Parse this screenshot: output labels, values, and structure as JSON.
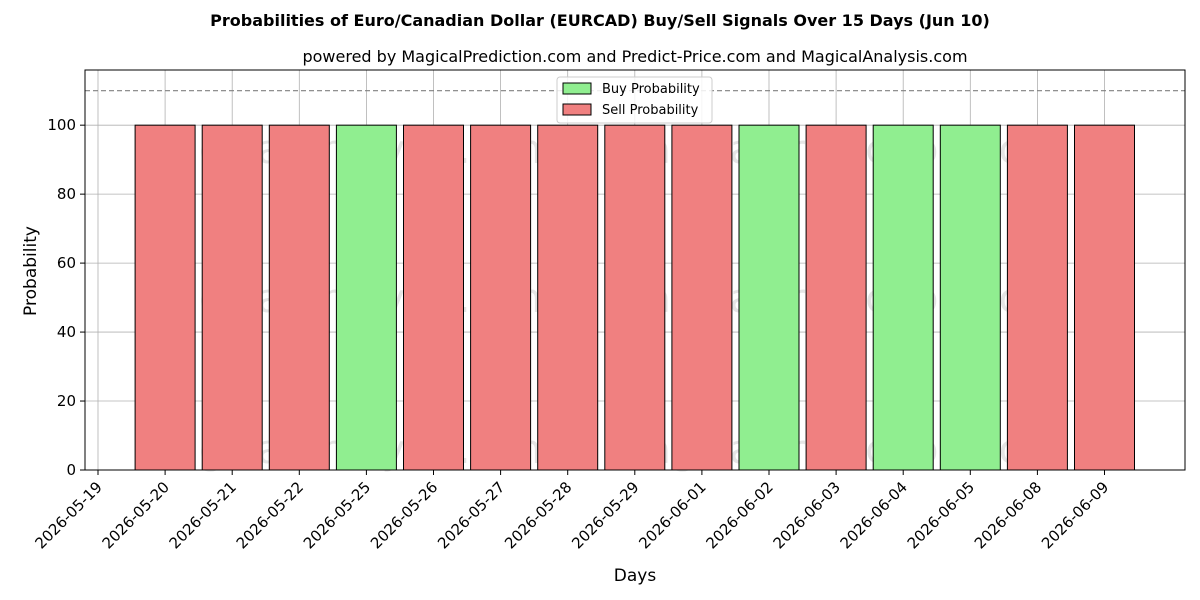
{
  "chart_data": {
    "type": "bar",
    "title": "Probabilities of Euro/Canadian Dollar (EURCAD) Buy/Sell Signals Over 15 Days (Jun 10)",
    "subtitle": "powered by MagicalPrediction.com and Predict-Price.com and MagicalAnalysis.com",
    "xlabel": "Days",
    "ylabel": "Probability",
    "ylim": [
      0,
      116
    ],
    "yticks": [
      0,
      20,
      40,
      60,
      80,
      100
    ],
    "reference_line": 110,
    "x_tick_labels": [
      "2026-05-19",
      "2026-05-20",
      "2026-05-21",
      "2026-05-22",
      "2026-05-25",
      "2026-05-26",
      "2026-05-27",
      "2026-05-28",
      "2026-05-29",
      "2026-06-01",
      "2026-06-02",
      "2026-06-03",
      "2026-06-04",
      "2026-06-05",
      "2026-06-08",
      "2026-06-09"
    ],
    "categories": [
      "2026-05-20",
      "2026-05-21",
      "2026-05-22",
      "2026-05-25",
      "2026-05-26",
      "2026-05-27",
      "2026-05-28",
      "2026-05-29",
      "2026-06-01",
      "2026-06-02",
      "2026-06-03",
      "2026-06-04",
      "2026-06-05",
      "2026-06-08",
      "2026-06-09"
    ],
    "series": [
      {
        "name": "Buy Probability",
        "color": "#90ee90",
        "values": [
          0,
          0,
          0,
          100,
          0,
          0,
          0,
          0,
          0,
          100,
          0,
          100,
          100,
          0,
          0
        ]
      },
      {
        "name": "Sell Probability",
        "color": "#f08080",
        "values": [
          100,
          100,
          100,
          0,
          100,
          100,
          100,
          100,
          100,
          0,
          100,
          0,
          0,
          100,
          100
        ]
      }
    ],
    "grid": true,
    "legend_position": "top-center",
    "watermarks": [
      "MagicalAnalysis.com",
      "MagicalPrediction.com"
    ]
  }
}
